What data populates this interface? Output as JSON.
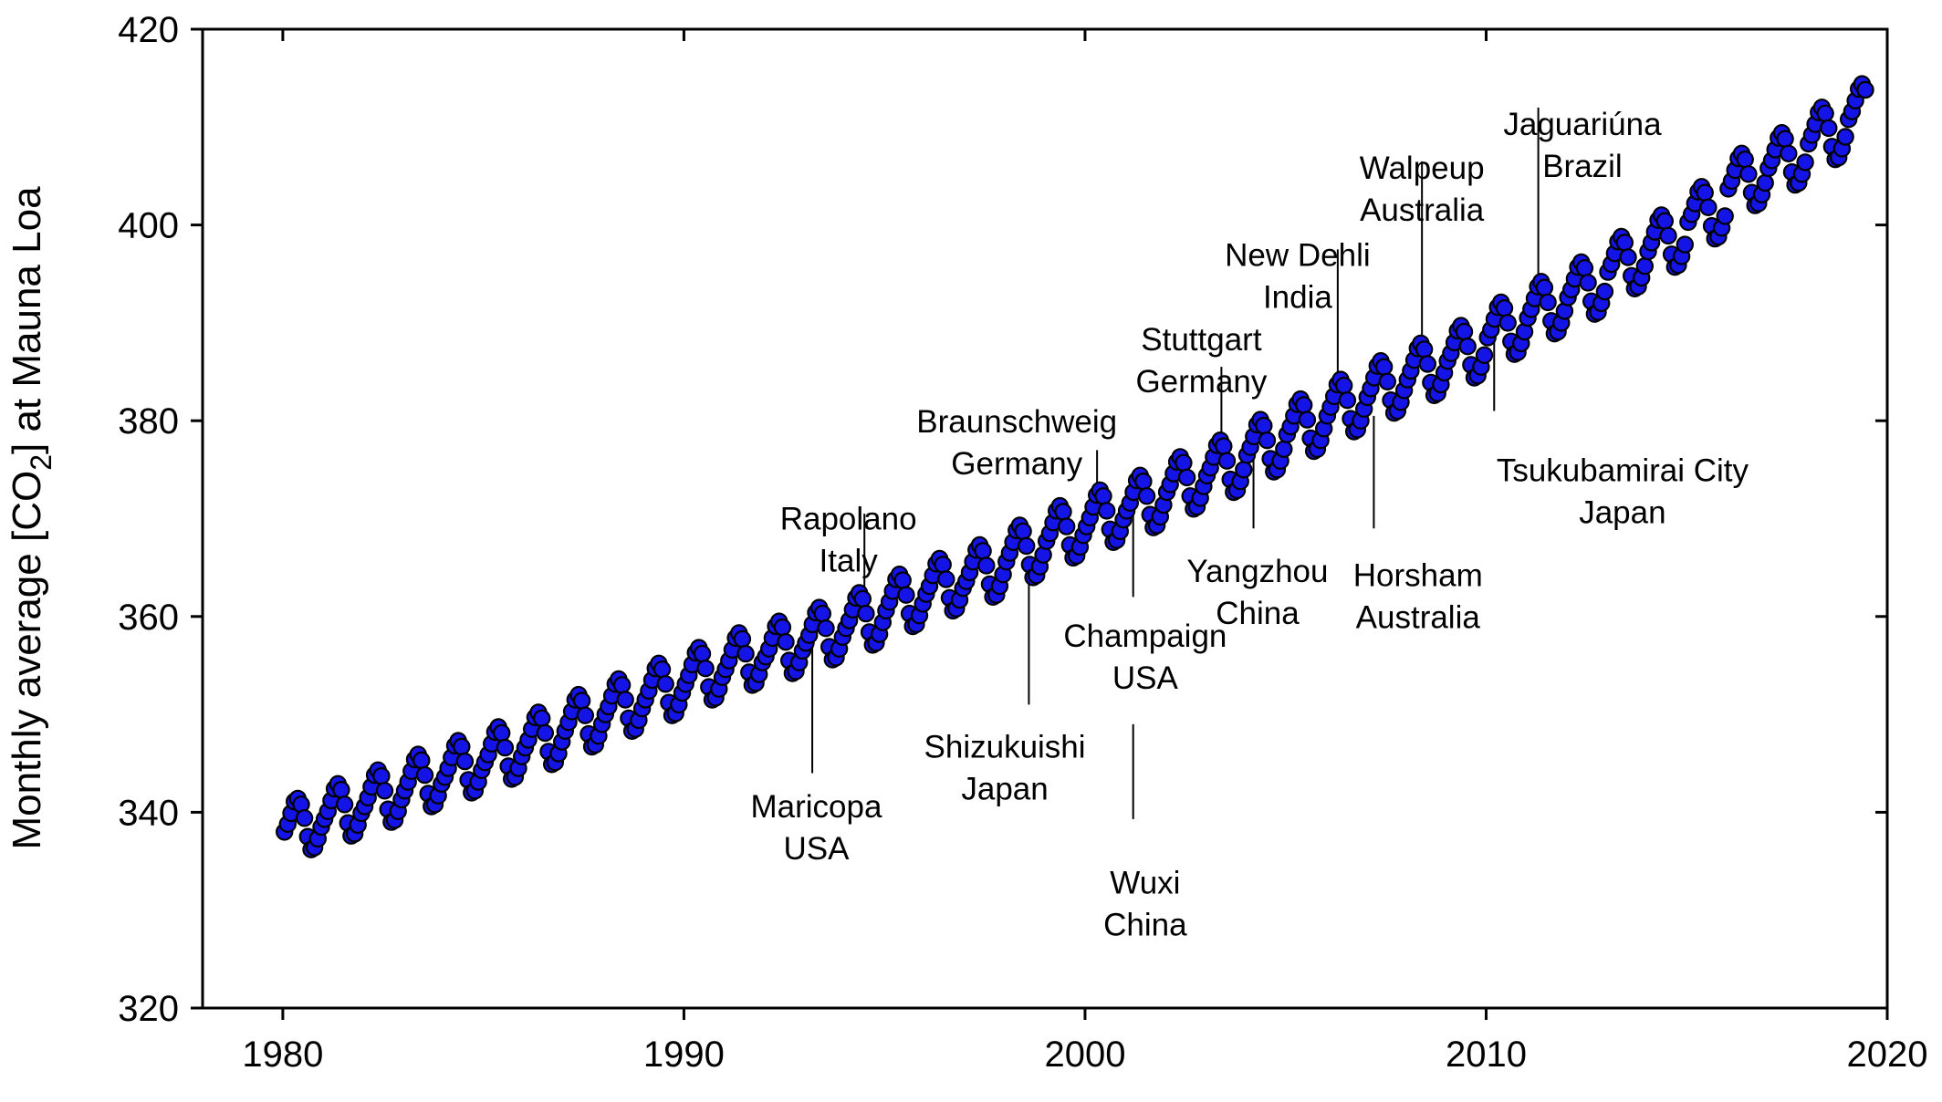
{
  "chart_data": {
    "type": "scatter",
    "title": "",
    "xlabel": "",
    "ylabel": {
      "prefix": "Monthly average [CO",
      "subscript": "2",
      "suffix": "] at Mauna Loa"
    },
    "xlim": [
      1978,
      2020
    ],
    "ylim": [
      320,
      420
    ],
    "xticks": [
      1980,
      1990,
      2000,
      2010,
      2020
    ],
    "yticks": [
      320,
      340,
      360,
      380,
      400,
      420
    ],
    "grid": false,
    "marker_color": "#1414e6",
    "series": [
      {
        "x_start": 1980.04,
        "x_step": 0.08333,
        "values": [
          338.0,
          338.8,
          339.9,
          341.1,
          341.4,
          340.8,
          339.4,
          337.5,
          336.2,
          336.4,
          337.3,
          338.5,
          339.3,
          340.1,
          341.2,
          342.4,
          342.9,
          342.3,
          340.8,
          338.9,
          337.6,
          337.8,
          338.7,
          339.9,
          340.6,
          341.5,
          342.6,
          343.8,
          344.3,
          343.7,
          342.2,
          340.3,
          339.0,
          339.2,
          340.1,
          341.3,
          342.2,
          343.1,
          344.2,
          345.4,
          345.9,
          345.3,
          343.8,
          341.9,
          340.6,
          340.8,
          341.7,
          342.9,
          343.6,
          344.5,
          345.6,
          346.8,
          347.3,
          346.7,
          345.2,
          343.3,
          342.0,
          342.2,
          343.1,
          344.3,
          345.1,
          345.9,
          347.0,
          348.2,
          348.7,
          348.1,
          346.6,
          344.7,
          343.4,
          343.6,
          344.5,
          345.7,
          346.6,
          347.4,
          348.5,
          349.7,
          350.2,
          349.6,
          348.1,
          346.2,
          344.9,
          345.1,
          346.0,
          347.2,
          348.3,
          349.2,
          350.3,
          351.5,
          352.0,
          351.4,
          349.9,
          348.0,
          346.7,
          346.9,
          347.8,
          349.0,
          350.0,
          350.8,
          351.9,
          353.1,
          353.6,
          353.0,
          351.5,
          349.6,
          348.3,
          348.5,
          349.4,
          350.6,
          351.5,
          352.4,
          353.5,
          354.7,
          355.2,
          354.6,
          353.1,
          351.2,
          349.9,
          350.1,
          351.0,
          352.2,
          353.1,
          354.0,
          355.1,
          356.3,
          356.8,
          356.2,
          354.7,
          352.8,
          351.5,
          351.7,
          352.6,
          353.8,
          354.6,
          355.5,
          356.6,
          357.8,
          358.3,
          357.7,
          356.2,
          354.3,
          353.0,
          353.2,
          354.1,
          355.3,
          355.9,
          356.7,
          357.8,
          359.0,
          359.5,
          358.9,
          357.4,
          355.5,
          354.2,
          354.4,
          355.3,
          356.5,
          357.3,
          358.1,
          359.2,
          360.4,
          360.9,
          360.3,
          358.8,
          356.9,
          355.6,
          355.8,
          356.7,
          357.9,
          358.8,
          359.6,
          360.7,
          361.9,
          362.4,
          361.8,
          360.3,
          358.4,
          357.1,
          357.3,
          358.2,
          359.4,
          360.6,
          361.5,
          362.6,
          363.8,
          364.3,
          363.7,
          362.2,
          360.3,
          359.0,
          359.2,
          360.1,
          361.3,
          362.3,
          363.1,
          364.2,
          365.4,
          365.9,
          365.3,
          363.8,
          361.9,
          360.6,
          360.8,
          361.7,
          362.9,
          363.6,
          364.5,
          365.6,
          366.8,
          367.3,
          366.7,
          365.2,
          363.3,
          362.0,
          362.2,
          363.1,
          364.3,
          365.6,
          366.5,
          367.6,
          368.8,
          369.3,
          368.7,
          367.2,
          365.3,
          364.0,
          364.2,
          365.1,
          366.3,
          367.7,
          368.5,
          369.6,
          370.8,
          371.3,
          370.7,
          369.2,
          367.3,
          366.0,
          366.2,
          367.1,
          368.3,
          369.2,
          370.1,
          371.2,
          372.4,
          372.9,
          372.3,
          370.8,
          368.9,
          367.6,
          367.8,
          368.7,
          369.9,
          370.8,
          371.6,
          372.7,
          373.9,
          374.4,
          373.8,
          372.3,
          370.4,
          369.1,
          369.3,
          370.2,
          371.4,
          372.7,
          373.5,
          374.6,
          375.8,
          376.3,
          375.7,
          374.2,
          372.3,
          371.0,
          371.2,
          372.1,
          373.3,
          374.4,
          375.2,
          376.3,
          377.5,
          378.0,
          377.4,
          375.9,
          374.0,
          372.7,
          372.9,
          373.8,
          375.0,
          376.5,
          377.3,
          378.4,
          379.6,
          380.1,
          379.5,
          378.0,
          376.1,
          374.8,
          375.0,
          375.9,
          377.1,
          378.6,
          379.4,
          380.5,
          381.7,
          382.2,
          381.6,
          380.1,
          378.2,
          376.9,
          377.1,
          378.0,
          379.2,
          380.5,
          381.4,
          382.5,
          383.7,
          384.2,
          383.6,
          382.1,
          380.2,
          378.9,
          379.1,
          380.0,
          381.2,
          382.4,
          383.3,
          384.4,
          385.6,
          386.1,
          385.5,
          384.0,
          382.1,
          380.8,
          381.0,
          381.9,
          383.1,
          384.2,
          385.1,
          386.2,
          387.4,
          387.9,
          387.3,
          385.8,
          383.9,
          382.6,
          382.8,
          383.7,
          384.9,
          386.1,
          386.9,
          388.0,
          389.2,
          389.7,
          389.1,
          387.6,
          385.7,
          384.4,
          384.6,
          385.5,
          386.7,
          388.5,
          389.3,
          390.4,
          391.6,
          392.1,
          391.5,
          390.0,
          388.1,
          386.8,
          387.0,
          387.9,
          389.1,
          390.5,
          391.4,
          392.5,
          393.7,
          394.2,
          393.6,
          392.1,
          390.2,
          388.9,
          389.1,
          390.0,
          391.2,
          392.6,
          393.4,
          394.5,
          395.7,
          396.2,
          395.6,
          394.1,
          392.2,
          390.9,
          391.1,
          392.0,
          393.2,
          395.2,
          396.0,
          397.1,
          398.3,
          398.8,
          398.2,
          396.7,
          394.8,
          393.5,
          393.7,
          394.6,
          395.8,
          397.3,
          398.2,
          399.3,
          400.5,
          401.0,
          400.4,
          398.9,
          397.0,
          395.7,
          395.9,
          396.8,
          398.0,
          400.3,
          401.1,
          402.2,
          403.4,
          403.9,
          403.3,
          401.8,
          399.9,
          398.6,
          398.8,
          399.7,
          400.9,
          403.7,
          404.5,
          405.6,
          406.8,
          407.3,
          406.7,
          405.2,
          403.3,
          402.0,
          402.2,
          403.1,
          404.3,
          405.8,
          406.6,
          407.7,
          408.9,
          409.4,
          408.8,
          407.3,
          405.4,
          404.1,
          404.3,
          405.2,
          406.4,
          408.3,
          409.2,
          410.3,
          411.5,
          412.0,
          411.4,
          409.9,
          408.0,
          406.7,
          406.9,
          407.8,
          409.0,
          410.8,
          411.6,
          412.7,
          413.9,
          414.4,
          413.8
        ]
      }
    ],
    "annotations": [
      {
        "lines": [
          "Rapolano",
          "Italy"
        ],
        "x": 1994.5,
        "y": 361.5,
        "label_x": 1994.1,
        "label_y": 368.9,
        "anchor": "middle",
        "side": "above",
        "line_to": 370.5
      },
      {
        "lines": [
          "Maricopa",
          "USA"
        ],
        "x": 1993.2,
        "y": 357.0,
        "label_x": 1993.3,
        "label_y": 339.5,
        "anchor": "middle",
        "side": "below",
        "line_to": 344.0
      },
      {
        "lines": [
          "Braunschweig",
          "Germany"
        ],
        "x": 2000.3,
        "y": 372.0,
        "label_x": 1998.3,
        "label_y": 378.8,
        "anchor": "middle",
        "side": "above",
        "line_to": 377.0
      },
      {
        "lines": [
          "Shizukuishi",
          "Japan"
        ],
        "x": 1998.6,
        "y": 365.5,
        "label_x": 1998.0,
        "label_y": 345.6,
        "anchor": "middle",
        "side": "below",
        "line_to": 351.0
      },
      {
        "lines": [
          "Champaign",
          "USA"
        ],
        "x": 2001.2,
        "y": 372.5,
        "label_x": 2001.5,
        "label_y": 356.9,
        "anchor": "middle",
        "side": "below",
        "line_to": 362.0
      },
      {
        "lines": [
          "Wuxi",
          "China"
        ],
        "x": 2001.2,
        "y": 349.0,
        "label_x": 2001.5,
        "label_y": 331.7,
        "anchor": "middle",
        "side": "below",
        "line_to": 339.3
      },
      {
        "lines": [
          "Stuttgart",
          "Germany"
        ],
        "x": 2003.4,
        "y": 378.0,
        "label_x": 2002.9,
        "label_y": 387.2,
        "anchor": "middle",
        "side": "above",
        "line_to": 385.5
      },
      {
        "lines": [
          "Yangzhou",
          "China"
        ],
        "x": 2004.2,
        "y": 377.0,
        "label_x": 2004.3,
        "label_y": 363.5,
        "anchor": "middle",
        "side": "below",
        "line_to": 369.0
      },
      {
        "lines": [
          "New Dehli",
          "India"
        ],
        "x": 2006.3,
        "y": 384.5,
        "label_x": 2005.3,
        "label_y": 395.8,
        "anchor": "middle",
        "side": "above",
        "line_to": 397.5
      },
      {
        "lines": [
          "Horsham",
          "Australia"
        ],
        "x": 2007.2,
        "y": 380.5,
        "label_x": 2008.3,
        "label_y": 363.1,
        "anchor": "middle",
        "side": "below",
        "line_to": 369.0
      },
      {
        "lines": [
          "Walpeup",
          "Australia"
        ],
        "x": 2008.4,
        "y": 387.5,
        "label_x": 2008.4,
        "label_y": 404.7,
        "anchor": "middle",
        "side": "above",
        "line_to": 406.5
      },
      {
        "lines": [
          "Jaguariúna",
          "Brazil"
        ],
        "x": 2011.3,
        "y": 393.5,
        "label_x": 2012.4,
        "label_y": 409.2,
        "anchor": "middle",
        "side": "above",
        "line_to": 412.0
      },
      {
        "lines": [
          "Tsukubamirai City",
          "Japan"
        ],
        "x": 2010.2,
        "y": 390.0,
        "label_x": 2013.4,
        "label_y": 373.8,
        "anchor": "middle",
        "side": "below",
        "line_to": 381.0
      }
    ]
  }
}
